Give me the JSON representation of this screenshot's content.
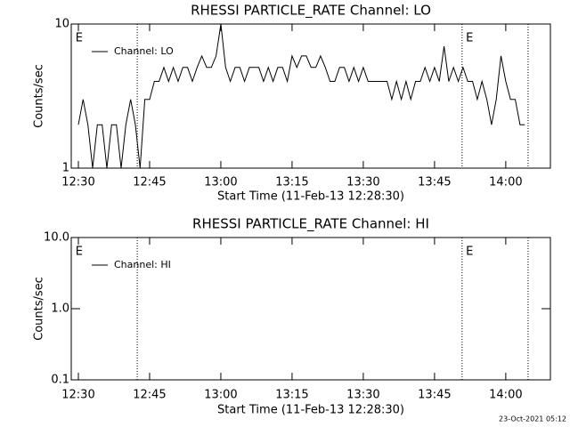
{
  "chart_data": [
    {
      "type": "line",
      "title": "RHESSI PARTICLE_RATE Channel: LO",
      "x_label": "Start Time (11-Feb-13 12:28:30)",
      "y_label": "Counts/sec",
      "log_y": true,
      "legend": "upper left",
      "xlim": [
        748.5,
        849.4
      ],
      "ylim": [
        1,
        10
      ],
      "xticks": [
        {
          "value": 750,
          "label": "12:30"
        },
        {
          "value": 765,
          "label": "12:45"
        },
        {
          "value": 780,
          "label": "13:00"
        },
        {
          "value": 795,
          "label": "13:15"
        },
        {
          "value": 810,
          "label": "13:30"
        },
        {
          "value": 825,
          "label": "13:45"
        },
        {
          "value": 840,
          "label": "14:00"
        }
      ],
      "yticks": [
        1,
        10
      ],
      "vlines": [
        762.4,
        830.8,
        844.7
      ],
      "annotations": [
        {
          "text": "E",
          "x": 749.4
        },
        {
          "text": "E",
          "x": 831.6
        }
      ],
      "series": [
        {
          "name": "Channel: LO",
          "color": "#000000",
          "x": [
            750,
            751,
            752,
            753,
            754,
            755,
            756,
            757,
            758,
            759,
            760,
            761,
            762,
            763,
            764,
            765,
            766,
            767,
            768,
            769,
            770,
            771,
            772,
            773,
            774,
            775,
            776,
            777,
            778,
            779,
            780,
            781,
            782,
            783,
            784,
            785,
            786,
            787,
            788,
            789,
            790,
            791,
            792,
            793,
            794,
            795,
            796,
            797,
            798,
            799,
            800,
            801,
            802,
            803,
            804,
            805,
            806,
            807,
            808,
            809,
            810,
            811,
            812,
            813,
            814,
            815,
            816,
            817,
            818,
            819,
            820,
            821,
            822,
            823,
            824,
            825,
            826,
            827,
            828,
            829,
            830,
            831,
            832,
            833,
            834,
            835,
            836,
            837,
            838,
            839,
            840,
            841,
            842,
            843,
            844
          ],
          "values": [
            2,
            3,
            2,
            1,
            2,
            2,
            1,
            2,
            2,
            1,
            2,
            3,
            2,
            1,
            3,
            3,
            4,
            4,
            5,
            4,
            5,
            4,
            5,
            5,
            4,
            5,
            6,
            5,
            5,
            6,
            10,
            5,
            4,
            5,
            5,
            4,
            5,
            5,
            5,
            4,
            5,
            4,
            5,
            5,
            4,
            6,
            5,
            6,
            6,
            5,
            5,
            6,
            5,
            4,
            4,
            5,
            5,
            4,
            5,
            4,
            5,
            4,
            4,
            4,
            4,
            4,
            3,
            4,
            3,
            4,
            3,
            4,
            4,
            5,
            4,
            5,
            4,
            7,
            4,
            5,
            4,
            5,
            4,
            4,
            3,
            4,
            3,
            2,
            3,
            6,
            4,
            3,
            3,
            2,
            2
          ]
        }
      ]
    },
    {
      "type": "line",
      "title": "RHESSI PARTICLE_RATE Channel: HI",
      "x_label": "Start Time (11-Feb-13 12:28:30)",
      "y_label": "Counts/sec",
      "log_y": true,
      "legend": "upper left",
      "xlim": [
        748.5,
        849.4
      ],
      "ylim": [
        0.1,
        10
      ],
      "xticks": [
        {
          "value": 750,
          "label": "12:30"
        },
        {
          "value": 765,
          "label": "12:45"
        },
        {
          "value": 780,
          "label": "13:00"
        },
        {
          "value": 795,
          "label": "13:15"
        },
        {
          "value": 810,
          "label": "13:30"
        },
        {
          "value": 825,
          "label": "13:45"
        },
        {
          "value": 840,
          "label": "14:00"
        }
      ],
      "yticks": [
        {
          "value": 0.1,
          "label": "0.1"
        },
        {
          "value": 1,
          "label": "1.0"
        },
        {
          "value": 10,
          "label": "10.0"
        }
      ],
      "vlines": [
        762.4,
        830.8,
        844.7
      ],
      "annotations": [
        {
          "text": "E",
          "x": 749.4
        },
        {
          "text": "E",
          "x": 831.6
        }
      ],
      "series": [
        {
          "name": "Channel: HI",
          "color": "#000000",
          "x": [],
          "values": []
        }
      ]
    }
  ],
  "footer": "23-Oct-2021 05:12"
}
